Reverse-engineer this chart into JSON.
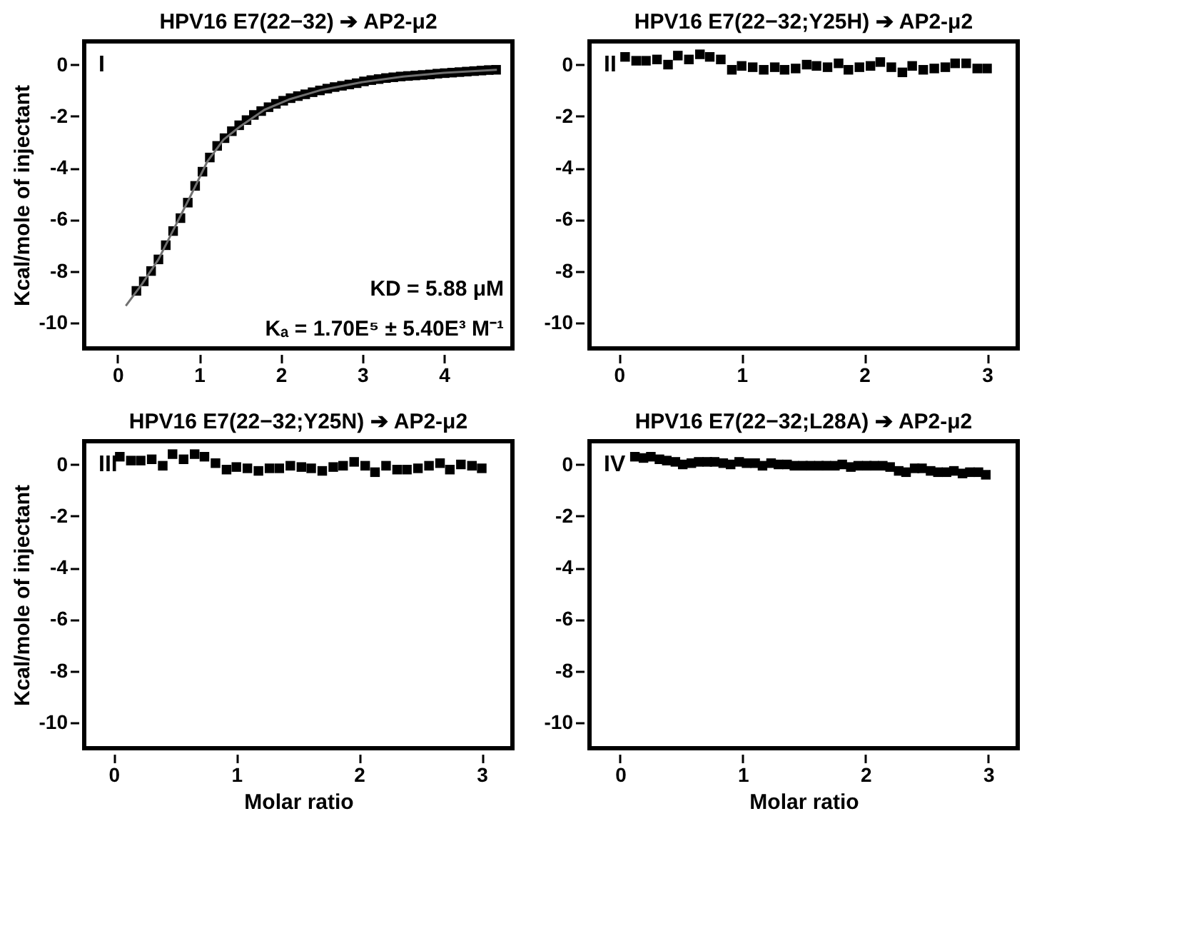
{
  "chart_data": [
    {
      "type": "scatter",
      "title": "HPV16 E7(22−32) ➔ AP2-μ2",
      "ylabel": "Kcal/mole of injectant",
      "xlim": [
        -0.41,
        4.84
      ],
      "ylim": [
        -11,
        0.9
      ],
      "xticks": [
        0,
        1,
        2,
        3,
        4
      ],
      "yticks": [
        0,
        -2,
        -4,
        -6,
        -8,
        -10
      ],
      "marker": "square",
      "grid": false,
      "annotations": [
        "I",
        "KD = 5.88 μM",
        "Kₐ = 1.70E⁵ ± 5.40E³ M⁻¹"
      ],
      "series": [
        {
          "color": "#000000",
          "x": [
            0.23,
            0.32,
            0.41,
            0.5,
            0.59,
            0.68,
            0.77,
            0.86,
            0.95,
            1.04,
            1.13,
            1.22,
            1.31,
            1.4,
            1.49,
            1.58,
            1.67,
            1.76,
            1.85,
            1.94,
            2.03,
            2.12,
            2.21,
            2.3,
            2.39,
            2.48,
            2.57,
            2.66,
            2.75,
            2.84,
            2.93,
            3.02,
            3.11,
            3.2,
            3.29,
            3.38,
            3.47,
            3.56,
            3.65,
            3.74,
            3.83,
            3.92,
            4.01,
            4.1,
            4.19,
            4.28,
            4.37,
            4.46,
            4.55,
            4.64
          ],
          "values": [
            -8.77,
            -8.4,
            -8.0,
            -7.55,
            -7.0,
            -6.45,
            -5.95,
            -5.35,
            -4.7,
            -4.15,
            -3.6,
            -3.15,
            -2.85,
            -2.58,
            -2.35,
            -2.15,
            -1.95,
            -1.8,
            -1.65,
            -1.52,
            -1.4,
            -1.3,
            -1.22,
            -1.15,
            -1.07,
            -1.0,
            -0.93,
            -0.87,
            -0.82,
            -0.77,
            -0.72,
            -0.65,
            -0.6,
            -0.56,
            -0.52,
            -0.49,
            -0.46,
            -0.44,
            -0.42,
            -0.4,
            -0.38,
            -0.35,
            -0.33,
            -0.31,
            -0.29,
            -0.27,
            -0.25,
            -0.23,
            -0.21,
            -0.2
          ]
        },
        {
          "type": "line",
          "marker": "none",
          "color": "#707070",
          "x": [
            0.1,
            0.3,
            0.5,
            0.7,
            0.9,
            1.1,
            1.3,
            1.5,
            1.8,
            2.1,
            2.5,
            3.0,
            3.5,
            4.0,
            4.65
          ],
          "values": [
            -9.35,
            -8.5,
            -7.55,
            -6.3,
            -5.05,
            -3.75,
            -2.9,
            -2.4,
            -1.75,
            -1.35,
            -0.98,
            -0.68,
            -0.46,
            -0.32,
            -0.2
          ]
        }
      ]
    },
    {
      "type": "scatter",
      "title": "HPV16 E7(22−32;Y25H) ➔ AP2-μ2",
      "xlim": [
        -0.24,
        3.25
      ],
      "ylim": [
        -11,
        0.9
      ],
      "xticks": [
        0,
        1,
        2,
        3
      ],
      "yticks": [
        0,
        -2,
        -4,
        -6,
        -8,
        -10
      ],
      "marker": "square",
      "grid": false,
      "annotations": [
        "II"
      ],
      "series": [
        {
          "color": "#000000",
          "x": [
            0.05,
            0.14,
            0.22,
            0.31,
            0.4,
            0.48,
            0.57,
            0.66,
            0.74,
            0.83,
            0.92,
            1.0,
            1.09,
            1.18,
            1.27,
            1.35,
            1.44,
            1.53,
            1.61,
            1.7,
            1.79,
            1.87,
            1.96,
            2.05,
            2.13,
            2.22,
            2.31,
            2.39,
            2.48,
            2.57,
            2.66,
            2.74,
            2.83,
            2.92,
            3.0
          ],
          "values": [
            0.3,
            0.15,
            0.15,
            0.2,
            0.0,
            0.35,
            0.2,
            0.4,
            0.3,
            0.2,
            -0.2,
            -0.05,
            -0.1,
            -0.2,
            -0.1,
            -0.2,
            -0.15,
            0.0,
            -0.05,
            -0.1,
            0.05,
            -0.2,
            -0.1,
            -0.05,
            0.1,
            -0.1,
            -0.3,
            -0.05,
            -0.2,
            -0.15,
            -0.1,
            0.05,
            0.05,
            -0.15,
            -0.15
          ]
        }
      ]
    },
    {
      "type": "scatter",
      "title": "HPV16 E7(22−32;Y25N) ➔ AP2-μ2",
      "xlabel": "Molar ratio",
      "ylabel": "Kcal/mole of injectant",
      "xlim": [
        -0.24,
        3.25
      ],
      "ylim": [
        -11,
        0.9
      ],
      "xticks": [
        0,
        1,
        2,
        3
      ],
      "yticks": [
        0,
        -2,
        -4,
        -6,
        -8,
        -10
      ],
      "marker": "square",
      "grid": false,
      "annotations": [
        "III"
      ],
      "series": [
        {
          "color": "#000000",
          "x": [
            0.05,
            0.14,
            0.22,
            0.31,
            0.4,
            0.48,
            0.57,
            0.66,
            0.74,
            0.83,
            0.92,
            1.0,
            1.09,
            1.18,
            1.27,
            1.35,
            1.44,
            1.53,
            1.61,
            1.7,
            1.79,
            1.87,
            1.96,
            2.05,
            2.13,
            2.22,
            2.31,
            2.39,
            2.48,
            2.57,
            2.66,
            2.74,
            2.83,
            2.92,
            3.0
          ],
          "values": [
            0.3,
            0.15,
            0.15,
            0.2,
            -0.05,
            0.4,
            0.2,
            0.4,
            0.3,
            0.05,
            -0.2,
            -0.1,
            -0.15,
            -0.25,
            -0.15,
            -0.15,
            -0.05,
            -0.1,
            -0.15,
            -0.25,
            -0.1,
            -0.05,
            0.1,
            -0.05,
            -0.3,
            -0.05,
            -0.2,
            -0.2,
            -0.15,
            -0.05,
            0.05,
            -0.2,
            0.0,
            -0.05,
            -0.15
          ]
        }
      ]
    },
    {
      "type": "scatter",
      "title": "HPV16 E7(22−32;L28A) ➔ AP2-μ2",
      "xlabel": "Molar ratio",
      "xlim": [
        -0.25,
        3.24
      ],
      "ylim": [
        -11,
        0.9
      ],
      "xticks": [
        0,
        1,
        2,
        3
      ],
      "yticks": [
        0,
        -2,
        -4,
        -6,
        -8,
        -10
      ],
      "marker": "square",
      "grid": false,
      "annotations": [
        "IV"
      ],
      "series": [
        {
          "color": "#000000",
          "x": [
            0.12,
            0.19,
            0.25,
            0.32,
            0.38,
            0.45,
            0.51,
            0.58,
            0.64,
            0.71,
            0.77,
            0.84,
            0.9,
            0.97,
            1.03,
            1.1,
            1.16,
            1.23,
            1.29,
            1.36,
            1.42,
            1.49,
            1.55,
            1.62,
            1.68,
            1.75,
            1.81,
            1.88,
            1.94,
            2.01,
            2.07,
            2.14,
            2.2,
            2.27,
            2.33,
            2.4,
            2.46,
            2.53,
            2.59,
            2.66,
            2.72,
            2.79,
            2.85,
            2.92,
            2.98
          ],
          "values": [
            0.3,
            0.25,
            0.3,
            0.2,
            0.15,
            0.1,
            0.0,
            0.05,
            0.1,
            0.1,
            0.1,
            0.05,
            0.0,
            0.1,
            0.05,
            0.05,
            -0.05,
            0.05,
            0.0,
            0.0,
            -0.05,
            -0.05,
            -0.05,
            -0.05,
            -0.05,
            -0.05,
            0.0,
            -0.1,
            -0.05,
            -0.05,
            -0.05,
            -0.05,
            -0.1,
            -0.25,
            -0.3,
            -0.15,
            -0.15,
            -0.25,
            -0.3,
            -0.3,
            -0.25,
            -0.35,
            -0.3,
            -0.3,
            -0.4
          ]
        }
      ]
    }
  ]
}
